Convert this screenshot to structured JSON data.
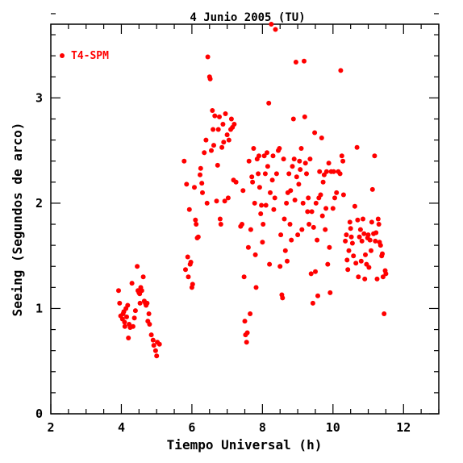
{
  "chart_data": {
    "type": "scatter",
    "title": "4 Junio 2005 (TU)",
    "xlabel": "Tiempo Universal (h)",
    "ylabel": "Seeing (Segundos de arco)",
    "xlim": [
      2,
      13
    ],
    "ylim": [
      0,
      3.7
    ],
    "xticks": [
      2,
      4,
      6,
      8,
      10,
      12
    ],
    "yticks": [
      0,
      1,
      2,
      3
    ],
    "grid": false,
    "legend": "top-left",
    "series": [
      {
        "name": "T4-SPM",
        "color": "#ff0000",
        "points": [
          [
            3.92,
            1.17
          ],
          [
            3.95,
            1.05
          ],
          [
            3.98,
            0.93
          ],
          [
            4.03,
            0.9
          ],
          [
            4.05,
            0.95
          ],
          [
            4.07,
            0.97
          ],
          [
            4.09,
            0.87
          ],
          [
            4.1,
            0.83
          ],
          [
            4.13,
            1.0
          ],
          [
            4.15,
            0.92
          ],
          [
            4.18,
            1.03
          ],
          [
            4.2,
            0.72
          ],
          [
            4.22,
            0.85
          ],
          [
            4.25,
            0.82
          ],
          [
            4.3,
            1.24
          ],
          [
            4.33,
            0.83
          ],
          [
            4.37,
            0.91
          ],
          [
            4.4,
            0.98
          ],
          [
            4.45,
            1.4
          ],
          [
            4.47,
            1.17
          ],
          [
            4.5,
            1.15
          ],
          [
            4.52,
            1.14
          ],
          [
            4.53,
            1.05
          ],
          [
            4.55,
            1.2
          ],
          [
            4.58,
            1.17
          ],
          [
            4.62,
            1.3
          ],
          [
            4.65,
            1.07
          ],
          [
            4.68,
            1.05
          ],
          [
            4.7,
            1.03
          ],
          [
            4.73,
            1.05
          ],
          [
            4.75,
            0.88
          ],
          [
            4.78,
            0.95
          ],
          [
            4.8,
            0.85
          ],
          [
            4.85,
            0.75
          ],
          [
            4.9,
            0.7
          ],
          [
            4.92,
            0.65
          ],
          [
            4.97,
            0.6
          ],
          [
            5.0,
            0.55
          ],
          [
            5.02,
            0.68
          ],
          [
            5.08,
            0.66
          ],
          [
            5.78,
            2.4
          ],
          [
            5.82,
            1.37
          ],
          [
            5.85,
            2.18
          ],
          [
            5.88,
            1.49
          ],
          [
            5.9,
            1.3
          ],
          [
            5.93,
            1.94
          ],
          [
            5.95,
            1.42
          ],
          [
            5.97,
            1.44
          ],
          [
            6.0,
            1.2
          ],
          [
            6.02,
            1.23
          ],
          [
            6.07,
            2.15
          ],
          [
            6.1,
            1.84
          ],
          [
            6.12,
            1.8
          ],
          [
            6.15,
            1.67
          ],
          [
            6.18,
            1.68
          ],
          [
            6.23,
            2.27
          ],
          [
            6.25,
            2.33
          ],
          [
            6.28,
            2.19
          ],
          [
            6.3,
            2.1
          ],
          [
            6.35,
            2.48
          ],
          [
            6.4,
            2.6
          ],
          [
            6.43,
            2.0
          ],
          [
            6.45,
            3.39
          ],
          [
            6.5,
            3.2
          ],
          [
            6.52,
            3.18
          ],
          [
            6.55,
            2.5
          ],
          [
            6.58,
            2.88
          ],
          [
            6.6,
            2.7
          ],
          [
            6.62,
            2.55
          ],
          [
            6.65,
            2.83
          ],
          [
            6.7,
            2.02
          ],
          [
            6.73,
            2.36
          ],
          [
            6.75,
            2.7
          ],
          [
            6.78,
            2.82
          ],
          [
            6.8,
            1.85
          ],
          [
            6.82,
            1.8
          ],
          [
            6.85,
            2.53
          ],
          [
            6.88,
            2.75
          ],
          [
            6.9,
            2.58
          ],
          [
            6.93,
            2.02
          ],
          [
            6.95,
            2.85
          ],
          [
            7.0,
            2.65
          ],
          [
            7.03,
            2.05
          ],
          [
            7.05,
            2.6
          ],
          [
            7.1,
            2.7
          ],
          [
            7.12,
            2.8
          ],
          [
            7.15,
            2.72
          ],
          [
            7.18,
            2.22
          ],
          [
            7.2,
            2.75
          ],
          [
            7.25,
            2.2
          ],
          [
            7.38,
            1.78
          ],
          [
            7.42,
            1.8
          ],
          [
            7.45,
            2.12
          ],
          [
            7.48,
            1.3
          ],
          [
            7.5,
            0.88
          ],
          [
            7.52,
            0.75
          ],
          [
            7.55,
            0.68
          ],
          [
            7.57,
            0.77
          ],
          [
            7.6,
            1.58
          ],
          [
            7.62,
            2.4
          ],
          [
            7.65,
            0.95
          ],
          [
            7.67,
            1.75
          ],
          [
            7.7,
            2.25
          ],
          [
            7.72,
            2.2
          ],
          [
            7.75,
            2.52
          ],
          [
            7.78,
            2.0
          ],
          [
            7.8,
            1.51
          ],
          [
            7.82,
            1.2
          ],
          [
            7.85,
            2.42
          ],
          [
            7.88,
            2.28
          ],
          [
            7.9,
            2.45
          ],
          [
            7.92,
            2.15
          ],
          [
            7.95,
            1.9
          ],
          [
            7.97,
            1.98
          ],
          [
            8.0,
            1.63
          ],
          [
            8.02,
            1.8
          ],
          [
            8.05,
            2.45
          ],
          [
            8.08,
            2.28
          ],
          [
            8.1,
            1.98
          ],
          [
            8.13,
            2.48
          ],
          [
            8.15,
            2.35
          ],
          [
            8.18,
            2.95
          ],
          [
            8.2,
            1.42
          ],
          [
            8.22,
            2.1
          ],
          [
            8.25,
            3.7
          ],
          [
            8.28,
            2.22
          ],
          [
            8.3,
            2.45
          ],
          [
            8.32,
            1.94
          ],
          [
            8.35,
            2.05
          ],
          [
            8.37,
            3.65
          ],
          [
            8.4,
            2.28
          ],
          [
            8.45,
            2.5
          ],
          [
            8.48,
            2.52
          ],
          [
            8.5,
            1.4
          ],
          [
            8.52,
            1.7
          ],
          [
            8.55,
            1.13
          ],
          [
            8.57,
            1.1
          ],
          [
            8.6,
            2.42
          ],
          [
            8.62,
            1.85
          ],
          [
            8.65,
            1.55
          ],
          [
            8.68,
            2.0
          ],
          [
            8.7,
            1.45
          ],
          [
            8.72,
            2.1
          ],
          [
            8.75,
            2.28
          ],
          [
            8.78,
            1.8
          ],
          [
            8.8,
            2.12
          ],
          [
            8.82,
            1.65
          ],
          [
            8.85,
            2.35
          ],
          [
            8.88,
            2.8
          ],
          [
            8.9,
            2.42
          ],
          [
            8.92,
            2.03
          ],
          [
            8.95,
            3.34
          ],
          [
            8.97,
            2.25
          ],
          [
            9.0,
            1.7
          ],
          [
            9.03,
            2.18
          ],
          [
            9.05,
            2.4
          ],
          [
            9.07,
            2.32
          ],
          [
            9.1,
            2.52
          ],
          [
            9.12,
            1.75
          ],
          [
            9.15,
            2.0
          ],
          [
            9.18,
            3.35
          ],
          [
            9.2,
            2.82
          ],
          [
            9.22,
            2.38
          ],
          [
            9.25,
            2.28
          ],
          [
            9.28,
            1.92
          ],
          [
            9.3,
            2.05
          ],
          [
            9.32,
            1.8
          ],
          [
            9.35,
            2.42
          ],
          [
            9.38,
            1.33
          ],
          [
            9.4,
            1.92
          ],
          [
            9.43,
            1.05
          ],
          [
            9.45,
            1.77
          ],
          [
            9.48,
            2.67
          ],
          [
            9.5,
            1.35
          ],
          [
            9.52,
            2.0
          ],
          [
            9.55,
            1.65
          ],
          [
            9.57,
            1.12
          ],
          [
            9.6,
            2.05
          ],
          [
            9.62,
            2.3
          ],
          [
            9.65,
            2.08
          ],
          [
            9.68,
            2.62
          ],
          [
            9.7,
            1.88
          ],
          [
            9.72,
            2.2
          ],
          [
            9.75,
            2.27
          ],
          [
            9.78,
            1.75
          ],
          [
            9.8,
            1.95
          ],
          [
            9.82,
            2.3
          ],
          [
            9.85,
            1.42
          ],
          [
            9.88,
            2.38
          ],
          [
            9.9,
            1.58
          ],
          [
            9.92,
            1.15
          ],
          [
            9.95,
            2.3
          ],
          [
            10.0,
            1.95
          ],
          [
            10.02,
            2.3
          ],
          [
            10.05,
            2.05
          ],
          [
            10.1,
            2.1
          ],
          [
            10.15,
            2.3
          ],
          [
            10.2,
            2.28
          ],
          [
            10.22,
            3.26
          ],
          [
            10.25,
            2.45
          ],
          [
            10.28,
            2.4
          ],
          [
            10.3,
            2.08
          ],
          [
            10.35,
            1.64
          ],
          [
            10.38,
            1.7
          ],
          [
            10.4,
            1.46
          ],
          [
            10.42,
            1.37
          ],
          [
            10.45,
            1.55
          ],
          [
            10.48,
            1.82
          ],
          [
            10.5,
            1.76
          ],
          [
            10.52,
            1.68
          ],
          [
            10.55,
            1.62
          ],
          [
            10.58,
            1.5
          ],
          [
            10.62,
            1.97
          ],
          [
            10.65,
            1.43
          ],
          [
            10.68,
            2.53
          ],
          [
            10.7,
            1.84
          ],
          [
            10.72,
            1.3
          ],
          [
            10.75,
            1.68
          ],
          [
            10.78,
            1.75
          ],
          [
            10.8,
            1.45
          ],
          [
            10.82,
            1.64
          ],
          [
            10.85,
            1.85
          ],
          [
            10.88,
            1.71
          ],
          [
            10.9,
            1.28
          ],
          [
            10.92,
            1.51
          ],
          [
            10.95,
            1.42
          ],
          [
            10.98,
            1.67
          ],
          [
            11.0,
            1.7
          ],
          [
            11.02,
            1.39
          ],
          [
            11.05,
            1.65
          ],
          [
            11.08,
            1.55
          ],
          [
            11.1,
            1.82
          ],
          [
            11.12,
            2.13
          ],
          [
            11.15,
            1.71
          ],
          [
            11.18,
            2.45
          ],
          [
            11.2,
            1.64
          ],
          [
            11.22,
            1.72
          ],
          [
            11.25,
            1.28
          ],
          [
            11.28,
            1.85
          ],
          [
            11.3,
            1.8
          ],
          [
            11.32,
            1.63
          ],
          [
            11.35,
            1.6
          ],
          [
            11.38,
            1.5
          ],
          [
            11.4,
            1.52
          ],
          [
            11.42,
            1.3
          ],
          [
            11.45,
            0.95
          ],
          [
            11.48,
            1.36
          ],
          [
            11.5,
            1.33
          ]
        ]
      }
    ]
  }
}
